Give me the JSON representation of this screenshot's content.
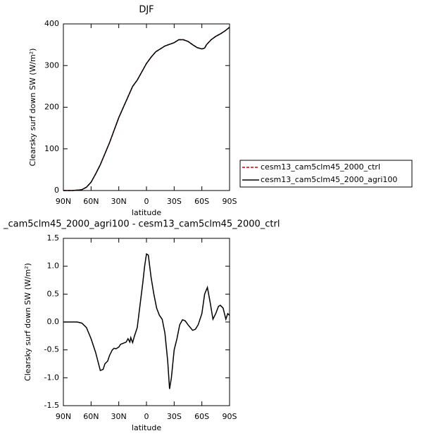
{
  "chart_data": [
    {
      "type": "line",
      "title": "DJF",
      "xlabel": "latitude",
      "ylabel": "Clearsky surf down SW (W/m²)",
      "x": [
        90,
        80,
        70,
        65,
        60,
        55,
        50,
        40,
        30,
        20,
        15,
        10,
        5,
        0,
        -5,
        -10,
        -20,
        -30,
        -35,
        -40,
        -45,
        -50,
        -55,
        -60,
        -63,
        -65,
        -70,
        -75,
        -80,
        -85,
        -90
      ],
      "series": [
        {
          "name": "cesm13_cam5clm45_2000_ctrl",
          "color": "#cc0000",
          "line_style": "dashed",
          "values": [
            0,
            0,
            2,
            8,
            20,
            40,
            62,
            115,
            175,
            225,
            250,
            265,
            285,
            305,
            320,
            333,
            347,
            355,
            362,
            362,
            358,
            350,
            343,
            340,
            342,
            350,
            362,
            370,
            376,
            383,
            392
          ]
        },
        {
          "name": "cesm13_cam5clm45_2000_agri100",
          "color": "#000000",
          "line_style": "solid",
          "values": [
            0,
            0,
            2,
            8,
            20,
            40,
            62,
            115,
            175,
            225,
            250,
            265,
            285,
            305,
            320,
            333,
            347,
            355,
            362,
            362,
            358,
            350,
            343,
            340,
            342,
            350,
            362,
            370,
            376,
            383,
            392
          ]
        }
      ],
      "xlim": [
        90,
        -90
      ],
      "xticks": [
        {
          "value": 90,
          "label": "90N"
        },
        {
          "value": 60,
          "label": "60N"
        },
        {
          "value": 30,
          "label": "30N"
        },
        0,
        {
          "value": -30,
          "label": "30S"
        },
        {
          "value": -60,
          "label": "60S"
        },
        {
          "value": -90,
          "label": "90S"
        }
      ],
      "ylim": [
        0,
        400
      ],
      "yticks": [
        0,
        100,
        200,
        300,
        400
      ],
      "legend": "right"
    },
    {
      "type": "line",
      "title": "_cam5clm45_2000_agri100 - cesm13_cam5clm45_2000_ctrl",
      "xlabel": "latitude",
      "ylabel": "Clearsky surf down SW (W/m²)",
      "x": [
        90,
        75,
        70,
        65,
        60,
        55,
        50,
        47,
        45,
        42,
        40,
        37,
        35,
        33,
        30,
        28,
        25,
        22,
        20,
        18,
        17,
        15,
        13,
        10,
        7,
        4,
        2,
        0,
        -2,
        -5,
        -8,
        -11,
        -14,
        -17,
        -20,
        -23,
        -25,
        -27,
        -30,
        -33,
        -36,
        -39,
        -42,
        -45,
        -50,
        -53,
        -56,
        -60,
        -63,
        -66,
        -69,
        -72,
        -75,
        -78,
        -80,
        -83,
        -86,
        -88,
        -90
      ],
      "series": [
        {
          "color": "#000000",
          "line_style": "solid",
          "values": [
            0,
            0,
            -0.02,
            -0.1,
            -0.3,
            -0.55,
            -0.87,
            -0.85,
            -0.75,
            -0.7,
            -0.6,
            -0.5,
            -0.47,
            -0.48,
            -0.45,
            -0.4,
            -0.38,
            -0.36,
            -0.3,
            -0.36,
            -0.28,
            -0.37,
            -0.25,
            -0.1,
            0.3,
            0.7,
            1.0,
            1.22,
            1.2,
            0.8,
            0.5,
            0.25,
            0.12,
            0.05,
            -0.2,
            -0.7,
            -1.2,
            -1.0,
            -0.5,
            -0.3,
            -0.05,
            0.04,
            0.02,
            -0.05,
            -0.15,
            -0.13,
            -0.05,
            0.15,
            0.5,
            0.62,
            0.35,
            0.05,
            0.15,
            0.28,
            0.3,
            0.25,
            0.05,
            0.15,
            0.12
          ]
        }
      ],
      "xlim": [
        90,
        -90
      ],
      "xticks": [
        {
          "value": 90,
          "label": "90N"
        },
        {
          "value": 60,
          "label": "60N"
        },
        {
          "value": 30,
          "label": "30N"
        },
        0,
        {
          "value": -30,
          "label": "30S"
        },
        {
          "value": -60,
          "label": "60S"
        },
        {
          "value": -90,
          "label": "90S"
        }
      ],
      "ylim": [
        -1.5,
        1.5
      ],
      "yticks": [
        -1.5,
        {
          "value": -1.0,
          "label": "-1.0"
        },
        -0.5,
        {
          "value": 0.0,
          "label": "0.0"
        },
        0.5,
        {
          "value": 1.0,
          "label": "1.0"
        },
        1.5
      ]
    }
  ]
}
